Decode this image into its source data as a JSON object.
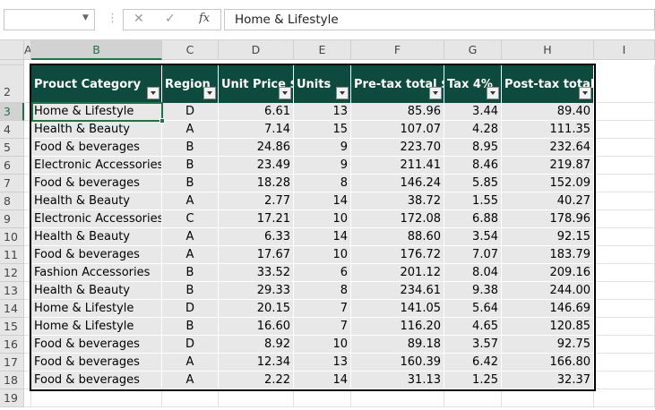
{
  "formula_bar": {
    "function_label": "fx",
    "content": "Home & Lifestyle"
  },
  "column_headers": [
    "A",
    "B",
    "C",
    "D",
    "E",
    "F",
    "G",
    "H",
    "I"
  ],
  "row_headers": [
    "2",
    "3",
    "4",
    "5",
    "6",
    "7",
    "8",
    "9",
    "10",
    "11",
    "12",
    "13",
    "14",
    "15",
    "16",
    "17",
    "18",
    "19"
  ],
  "table": {
    "headers": [
      "Prouct Category",
      "Region",
      "Unit Price $",
      "Units",
      "Pre-tax total $",
      "Tax 4%",
      "Post-tax total $"
    ],
    "rows": [
      [
        "Home & Lifestyle",
        "D",
        "6.61",
        "13",
        "85.96",
        "3.44",
        "89.40"
      ],
      [
        "Health & Beauty",
        "A",
        "7.14",
        "15",
        "107.07",
        "4.28",
        "111.35"
      ],
      [
        "Food & beverages",
        "B",
        "24.86",
        "9",
        "223.70",
        "8.95",
        "232.64"
      ],
      [
        "Electronic Accessories",
        "B",
        "23.49",
        "9",
        "211.41",
        "8.46",
        "219.87"
      ],
      [
        "Food & beverages",
        "B",
        "18.28",
        "8",
        "146.24",
        "5.85",
        "152.09"
      ],
      [
        "Health & Beauty",
        "A",
        "2.77",
        "14",
        "38.72",
        "1.55",
        "40.27"
      ],
      [
        "Electronic Accessories",
        "C",
        "17.21",
        "10",
        "172.08",
        "6.88",
        "178.96"
      ],
      [
        "Health & Beauty",
        "A",
        "6.33",
        "14",
        "88.60",
        "3.54",
        "92.15"
      ],
      [
        "Food & beverages",
        "A",
        "17.67",
        "10",
        "176.72",
        "7.07",
        "183.79"
      ],
      [
        "Fashion Accessories",
        "B",
        "33.52",
        "6",
        "201.12",
        "8.04",
        "209.16"
      ],
      [
        "Health & Beauty",
        "B",
        "29.33",
        "8",
        "234.61",
        "9.38",
        "244.00"
      ],
      [
        "Home & Lifestyle",
        "D",
        "20.15",
        "7",
        "141.05",
        "5.64",
        "146.69"
      ],
      [
        "Home & Lifestyle",
        "B",
        "16.60",
        "7",
        "116.20",
        "4.65",
        "120.85"
      ],
      [
        "Food & beverages",
        "D",
        "8.92",
        "10",
        "89.18",
        "3.57",
        "92.75"
      ],
      [
        "Food & beverages",
        "A",
        "12.34",
        "13",
        "160.39",
        "6.42",
        "166.80"
      ],
      [
        "Food & beverages",
        "A",
        "2.22",
        "14",
        "31.13",
        "1.25",
        "32.37"
      ]
    ]
  }
}
